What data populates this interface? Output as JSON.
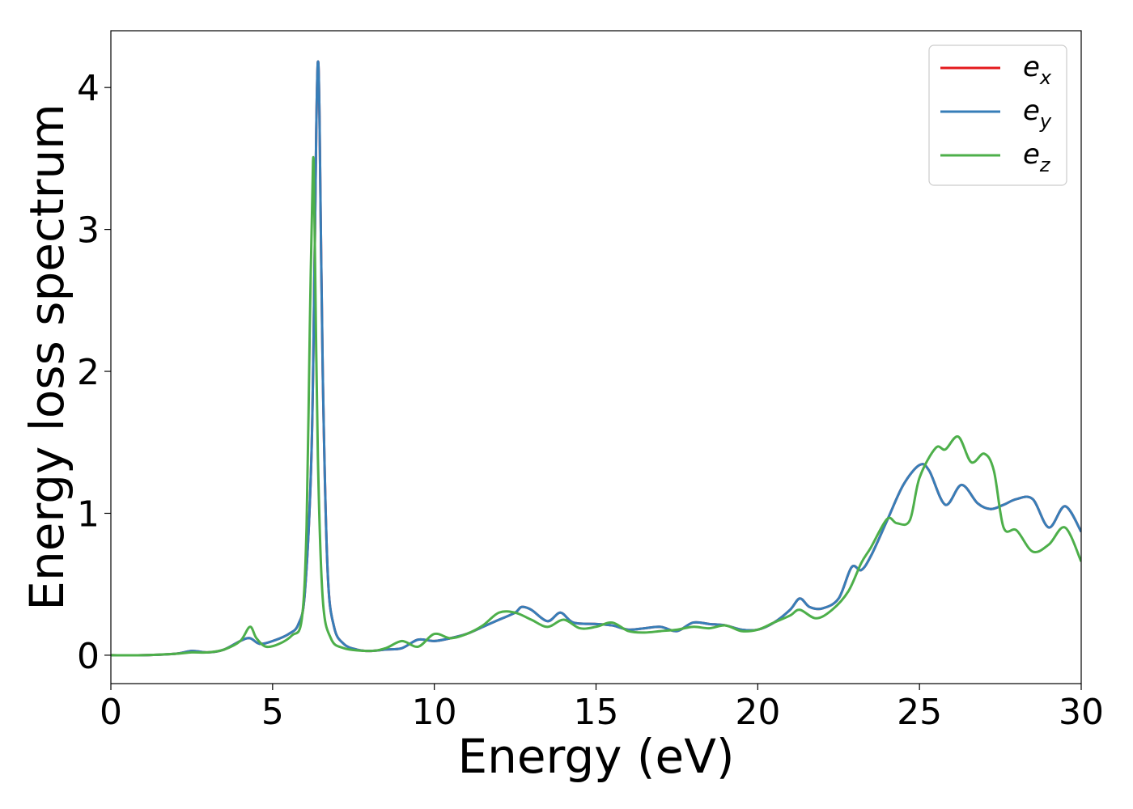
{
  "chart_data": {
    "type": "line",
    "title": "",
    "xlabel": "Energy (eV)",
    "ylabel": "Energy loss spectrum",
    "xlim": [
      0,
      30
    ],
    "ylim": [
      -0.2,
      4.4
    ],
    "xticks": [
      0,
      5,
      10,
      15,
      20,
      25,
      30
    ],
    "yticks": [
      0,
      1,
      2,
      3,
      4
    ],
    "xtick_labels": [
      "0",
      "5",
      "10",
      "15",
      "20",
      "25",
      "30"
    ],
    "ytick_labels": [
      "0",
      "1",
      "2",
      "3",
      "4"
    ],
    "grid": false,
    "legend_position": "top-right",
    "series": [
      {
        "name": "e_x",
        "color": "#e41a1c",
        "points": [
          [
            0,
            0
          ],
          [
            1,
            0
          ],
          [
            2,
            0.01
          ],
          [
            2.5,
            0.03
          ],
          [
            3,
            0.02
          ],
          [
            3.5,
            0.04
          ],
          [
            4,
            0.1
          ],
          [
            4.3,
            0.12
          ],
          [
            4.6,
            0.08
          ],
          [
            5,
            0.1
          ],
          [
            5.5,
            0.15
          ],
          [
            5.8,
            0.22
          ],
          [
            6.0,
            0.45
          ],
          [
            6.2,
            1.4
          ],
          [
            6.3,
            2.8
          ],
          [
            6.35,
            3.7
          ],
          [
            6.4,
            4.18
          ],
          [
            6.45,
            3.8
          ],
          [
            6.55,
            2.0
          ],
          [
            6.7,
            0.6
          ],
          [
            6.9,
            0.2
          ],
          [
            7.2,
            0.08
          ],
          [
            7.6,
            0.04
          ],
          [
            8,
            0.03
          ],
          [
            8.5,
            0.04
          ],
          [
            9,
            0.05
          ],
          [
            9.5,
            0.11
          ],
          [
            10,
            0.1
          ],
          [
            10.5,
            0.12
          ],
          [
            11,
            0.15
          ],
          [
            11.5,
            0.2
          ],
          [
            12,
            0.25
          ],
          [
            12.5,
            0.3
          ],
          [
            12.7,
            0.34
          ],
          [
            13,
            0.32
          ],
          [
            13.5,
            0.24
          ],
          [
            13.9,
            0.3
          ],
          [
            14.3,
            0.23
          ],
          [
            15,
            0.22
          ],
          [
            15.5,
            0.21
          ],
          [
            16,
            0.18
          ],
          [
            16.5,
            0.19
          ],
          [
            17,
            0.2
          ],
          [
            17.5,
            0.17
          ],
          [
            18,
            0.23
          ],
          [
            18.5,
            0.22
          ],
          [
            19,
            0.21
          ],
          [
            19.5,
            0.18
          ],
          [
            20,
            0.18
          ],
          [
            20.5,
            0.23
          ],
          [
            21,
            0.32
          ],
          [
            21.3,
            0.4
          ],
          [
            21.6,
            0.34
          ],
          [
            22,
            0.33
          ],
          [
            22.5,
            0.4
          ],
          [
            22.9,
            0.62
          ],
          [
            23.2,
            0.6
          ],
          [
            23.5,
            0.7
          ],
          [
            24,
            0.95
          ],
          [
            24.5,
            1.2
          ],
          [
            25,
            1.34
          ],
          [
            25.3,
            1.3
          ],
          [
            25.8,
            1.06
          ],
          [
            26.3,
            1.2
          ],
          [
            26.8,
            1.07
          ],
          [
            27.2,
            1.03
          ],
          [
            27.6,
            1.06
          ],
          [
            28,
            1.1
          ],
          [
            28.5,
            1.1
          ],
          [
            29,
            0.9
          ],
          [
            29.5,
            1.05
          ],
          [
            30,
            0.87
          ]
        ]
      },
      {
        "name": "e_y",
        "color": "#377eb8",
        "points": [
          [
            0,
            0
          ],
          [
            1,
            0
          ],
          [
            2,
            0.01
          ],
          [
            2.5,
            0.03
          ],
          [
            3,
            0.02
          ],
          [
            3.5,
            0.04
          ],
          [
            4,
            0.1
          ],
          [
            4.3,
            0.12
          ],
          [
            4.6,
            0.08
          ],
          [
            5,
            0.1
          ],
          [
            5.5,
            0.15
          ],
          [
            5.8,
            0.22
          ],
          [
            6.0,
            0.45
          ],
          [
            6.2,
            1.4
          ],
          [
            6.3,
            2.8
          ],
          [
            6.35,
            3.7
          ],
          [
            6.4,
            4.18
          ],
          [
            6.45,
            3.8
          ],
          [
            6.55,
            2.0
          ],
          [
            6.7,
            0.6
          ],
          [
            6.9,
            0.2
          ],
          [
            7.2,
            0.08
          ],
          [
            7.6,
            0.04
          ],
          [
            8,
            0.03
          ],
          [
            8.5,
            0.04
          ],
          [
            9,
            0.05
          ],
          [
            9.5,
            0.11
          ],
          [
            10,
            0.1
          ],
          [
            10.5,
            0.12
          ],
          [
            11,
            0.15
          ],
          [
            11.5,
            0.2
          ],
          [
            12,
            0.25
          ],
          [
            12.5,
            0.3
          ],
          [
            12.7,
            0.34
          ],
          [
            13,
            0.32
          ],
          [
            13.5,
            0.24
          ],
          [
            13.9,
            0.3
          ],
          [
            14.3,
            0.23
          ],
          [
            15,
            0.22
          ],
          [
            15.5,
            0.21
          ],
          [
            16,
            0.18
          ],
          [
            16.5,
            0.19
          ],
          [
            17,
            0.2
          ],
          [
            17.5,
            0.17
          ],
          [
            18,
            0.23
          ],
          [
            18.5,
            0.22
          ],
          [
            19,
            0.21
          ],
          [
            19.5,
            0.18
          ],
          [
            20,
            0.18
          ],
          [
            20.5,
            0.23
          ],
          [
            21,
            0.32
          ],
          [
            21.3,
            0.4
          ],
          [
            21.6,
            0.34
          ],
          [
            22,
            0.33
          ],
          [
            22.5,
            0.4
          ],
          [
            22.9,
            0.62
          ],
          [
            23.2,
            0.6
          ],
          [
            23.5,
            0.7
          ],
          [
            24,
            0.95
          ],
          [
            24.5,
            1.2
          ],
          [
            25,
            1.34
          ],
          [
            25.3,
            1.3
          ],
          [
            25.8,
            1.06
          ],
          [
            26.3,
            1.2
          ],
          [
            26.8,
            1.07
          ],
          [
            27.2,
            1.03
          ],
          [
            27.6,
            1.06
          ],
          [
            28,
            1.1
          ],
          [
            28.5,
            1.1
          ],
          [
            29,
            0.9
          ],
          [
            29.5,
            1.05
          ],
          [
            30,
            0.87
          ]
        ]
      },
      {
        "name": "e_z",
        "color": "#4daf4a",
        "points": [
          [
            0,
            0
          ],
          [
            1,
            0
          ],
          [
            2,
            0.01
          ],
          [
            2.5,
            0.02
          ],
          [
            3,
            0.02
          ],
          [
            3.5,
            0.04
          ],
          [
            4,
            0.1
          ],
          [
            4.3,
            0.2
          ],
          [
            4.5,
            0.12
          ],
          [
            4.8,
            0.06
          ],
          [
            5.2,
            0.08
          ],
          [
            5.6,
            0.14
          ],
          [
            5.9,
            0.25
          ],
          [
            6.05,
            0.9
          ],
          [
            6.15,
            2.3
          ],
          [
            6.25,
            3.48
          ],
          [
            6.3,
            3.0
          ],
          [
            6.4,
            1.4
          ],
          [
            6.55,
            0.4
          ],
          [
            6.8,
            0.12
          ],
          [
            7.2,
            0.05
          ],
          [
            8,
            0.03
          ],
          [
            8.5,
            0.05
          ],
          [
            9,
            0.1
          ],
          [
            9.5,
            0.06
          ],
          [
            10,
            0.15
          ],
          [
            10.5,
            0.12
          ],
          [
            11,
            0.15
          ],
          [
            11.5,
            0.21
          ],
          [
            12,
            0.3
          ],
          [
            12.5,
            0.3
          ],
          [
            13,
            0.25
          ],
          [
            13.5,
            0.2
          ],
          [
            14,
            0.25
          ],
          [
            14.5,
            0.19
          ],
          [
            15,
            0.2
          ],
          [
            15.5,
            0.23
          ],
          [
            16,
            0.17
          ],
          [
            16.5,
            0.16
          ],
          [
            17,
            0.17
          ],
          [
            17.5,
            0.18
          ],
          [
            18,
            0.2
          ],
          [
            18.5,
            0.19
          ],
          [
            19,
            0.21
          ],
          [
            19.5,
            0.17
          ],
          [
            20,
            0.18
          ],
          [
            20.5,
            0.23
          ],
          [
            21,
            0.28
          ],
          [
            21.3,
            0.32
          ],
          [
            21.8,
            0.26
          ],
          [
            22.3,
            0.32
          ],
          [
            22.8,
            0.45
          ],
          [
            23.2,
            0.65
          ],
          [
            23.5,
            0.76
          ],
          [
            24,
            0.96
          ],
          [
            24.3,
            0.93
          ],
          [
            24.7,
            0.95
          ],
          [
            25,
            1.25
          ],
          [
            25.5,
            1.46
          ],
          [
            25.8,
            1.45
          ],
          [
            26.2,
            1.54
          ],
          [
            26.6,
            1.36
          ],
          [
            27,
            1.42
          ],
          [
            27.3,
            1.3
          ],
          [
            27.6,
            0.9
          ],
          [
            28,
            0.88
          ],
          [
            28.5,
            0.73
          ],
          [
            29,
            0.78
          ],
          [
            29.5,
            0.9
          ],
          [
            30,
            0.66
          ]
        ]
      }
    ]
  }
}
